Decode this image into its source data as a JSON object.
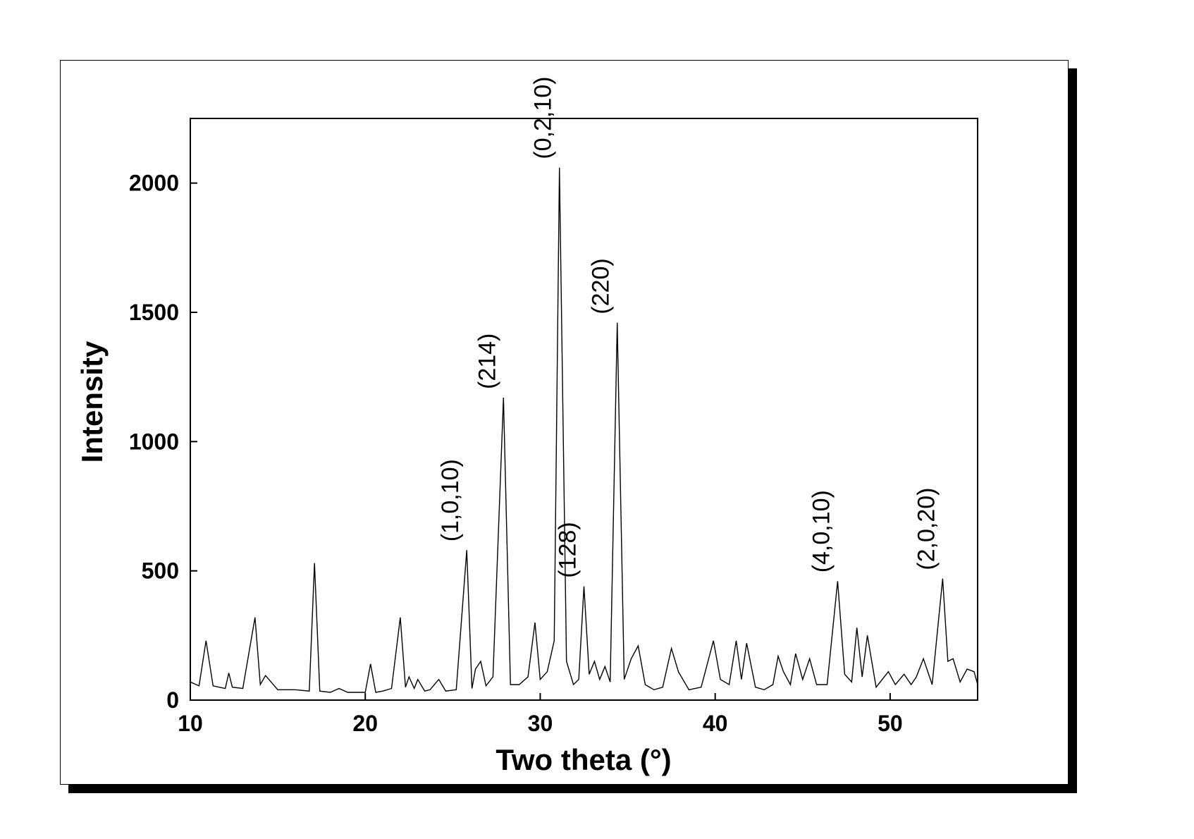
{
  "chart_data": {
    "type": "line",
    "title": "",
    "xlabel": "Two theta (°)",
    "ylabel": "Intensity",
    "xlim": [
      10,
      55
    ],
    "ylim": [
      0,
      2250
    ],
    "xticks": [
      10,
      20,
      30,
      40,
      50
    ],
    "yticks": [
      0,
      500,
      1000,
      1500,
      2000
    ],
    "grid": false,
    "series": [
      {
        "x": [
          10.0,
          10.5,
          10.9,
          11.3,
          12.0,
          12.2,
          12.4,
          13.0,
          13.7,
          14.0,
          14.3,
          15.0,
          16.0,
          16.8,
          17.1,
          17.4,
          18.0,
          18.5,
          19.0,
          20.0,
          20.3,
          20.6,
          21.0,
          21.5,
          22.0,
          22.3,
          22.5,
          22.8,
          23.0,
          23.4,
          23.7,
          24.2,
          24.6,
          25.2,
          25.8,
          26.1,
          26.3,
          26.6,
          26.9,
          27.3,
          27.9,
          28.3,
          28.8,
          29.3,
          29.7,
          30.0,
          30.4,
          30.8,
          31.1,
          31.5,
          31.9,
          32.2,
          32.5,
          32.8,
          33.1,
          33.4,
          33.7,
          34.0,
          34.4,
          34.8,
          35.2,
          35.6,
          36.0,
          36.5,
          37.0,
          37.5,
          37.9,
          38.5,
          39.2,
          39.9,
          40.3,
          40.8,
          41.2,
          41.5,
          41.8,
          42.3,
          42.8,
          43.3,
          43.6,
          43.9,
          44.3,
          44.6,
          45.0,
          45.4,
          45.8,
          46.4,
          47.0,
          47.4,
          47.8,
          48.1,
          48.4,
          48.7,
          49.2,
          49.9,
          50.3,
          50.8,
          51.2,
          51.5,
          51.9,
          52.4,
          53.0,
          53.3,
          53.6,
          54.0,
          54.4,
          54.8,
          55.0
        ],
        "values": [
          70,
          55,
          230,
          55,
          45,
          105,
          50,
          45,
          320,
          60,
          95,
          40,
          40,
          35,
          530,
          35,
          30,
          45,
          30,
          30,
          140,
          30,
          35,
          45,
          320,
          50,
          90,
          45,
          80,
          35,
          40,
          80,
          35,
          40,
          580,
          45,
          120,
          150,
          55,
          90,
          1170,
          60,
          60,
          90,
          300,
          80,
          110,
          230,
          2060,
          150,
          60,
          80,
          440,
          100,
          150,
          80,
          130,
          70,
          1460,
          80,
          160,
          210,
          60,
          40,
          50,
          200,
          110,
          40,
          50,
          230,
          80,
          60,
          230,
          80,
          220,
          50,
          40,
          60,
          170,
          110,
          60,
          180,
          80,
          160,
          60,
          60,
          460,
          100,
          70,
          280,
          90,
          250,
          50,
          110,
          60,
          100,
          60,
          90,
          160,
          60,
          470,
          150,
          160,
          70,
          120,
          110,
          60
        ]
      }
    ],
    "annotations": [
      {
        "text": "(1,0,10)",
        "x": 25.8
      },
      {
        "text": "(214)",
        "x": 27.9
      },
      {
        "text": "(0,2,10)",
        "x": 31.1
      },
      {
        "text": "(128)",
        "x": 32.5
      },
      {
        "text": "(220)",
        "x": 34.4
      },
      {
        "text": "(4,0,10)",
        "x": 47.0
      },
      {
        "text": "(2,0,20)",
        "x": 53.0
      }
    ]
  }
}
